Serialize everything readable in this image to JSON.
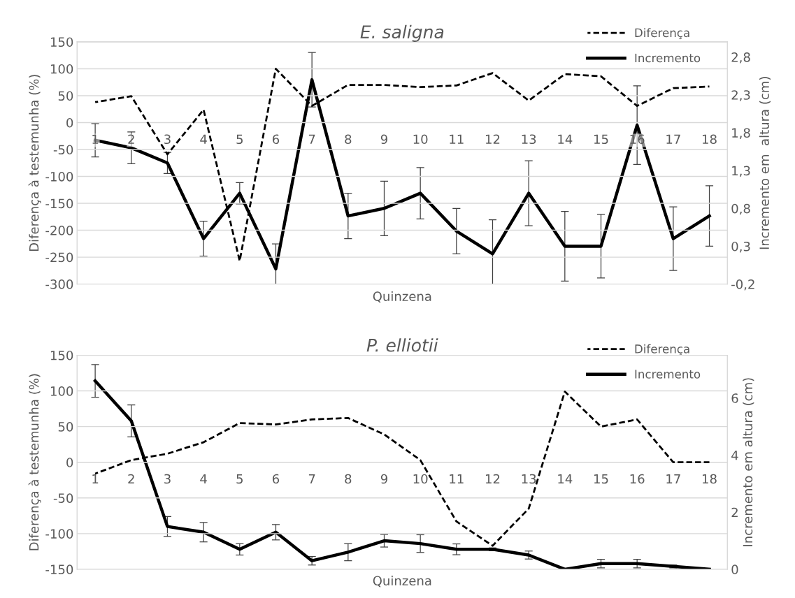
{
  "chart_data": [
    {
      "type": "line",
      "title": "E. saligna",
      "xlabel": "Quinzena",
      "ylabel": "Diferença à testemunha (%)",
      "y2label": "Incremento em  altura (cm)",
      "categories": [
        "1",
        "2",
        "3",
        "4",
        "5",
        "6",
        "7",
        "8",
        "9",
        "10",
        "11",
        "12",
        "13",
        "14",
        "15",
        "16",
        "17",
        "18"
      ],
      "ylim": [
        -300,
        150
      ],
      "yticks": [
        -300,
        -250,
        -200,
        -150,
        -100,
        -50,
        0,
        50,
        100,
        150
      ],
      "y2lim": [
        -0.2,
        3.0
      ],
      "y2ticks": [
        {
          "value": -0.2,
          "label": "-0,2"
        },
        {
          "value": 0.3,
          "label": "0,3"
        },
        {
          "value": 0.8,
          "label": "0,8"
        },
        {
          "value": 1.3,
          "label": "1,3"
        },
        {
          "value": 1.8,
          "label": "1,8"
        },
        {
          "value": 2.3,
          "label": "2,3"
        },
        {
          "value": 2.8,
          "label": "2,8"
        }
      ],
      "grid": "y",
      "legend": "top right",
      "marker": "none",
      "series": [
        {
          "name": "Diferença",
          "color": "#000000",
          "line_style": "dashed",
          "values": [
            38,
            49,
            -59,
            24,
            -257,
            100,
            31,
            70,
            70,
            66,
            69,
            92,
            41,
            90,
            86,
            31,
            64,
            67
          ]
        },
        {
          "name": "Incremento",
          "color": "#000000",
          "line_style": "solid",
          "axis": "y2",
          "values": [
            1.7,
            1.6,
            1.4,
            0.4,
            1.0,
            0.0,
            2.5,
            0.7,
            0.8,
            1.0,
            0.5,
            0.2,
            1.0,
            0.3,
            0.3,
            1.9,
            0.4,
            0.7
          ],
          "errors": [
            0.22,
            0.21,
            0.14,
            0.23,
            0.14,
            [
              -0.2,
              0.33
            ],
            0.36,
            0.3,
            0.36,
            0.34,
            0.3,
            [
              -0.2,
              0.65
            ],
            0.43,
            0.46,
            0.42,
            0.52,
            0.42,
            0.4
          ]
        }
      ]
    },
    {
      "type": "line",
      "title": "P. elliotii",
      "xlabel": "Quinzena",
      "ylabel": "Diferença à testemunha (%)",
      "y2label": "Incremento em altura (cm)",
      "categories": [
        "1",
        "2",
        "3",
        "4",
        "5",
        "6",
        "7",
        "8",
        "9",
        "10",
        "11",
        "12",
        "13",
        "14",
        "15",
        "16",
        "17",
        "18"
      ],
      "ylim": [
        -150,
        150
      ],
      "yticks": [
        -150,
        -100,
        -50,
        0,
        50,
        100,
        150
      ],
      "y2lim": [
        0,
        7.5
      ],
      "y2ticks": [
        0,
        2,
        4,
        6
      ],
      "grid": "y",
      "legend": "top right",
      "marker": "none",
      "series": [
        {
          "name": "Diferença",
          "color": "#000000",
          "line_style": "dashed",
          "values": [
            -16,
            3,
            12,
            28,
            55,
            53,
            60,
            62,
            39,
            3,
            -83,
            -117,
            -65,
            99,
            50,
            60,
            0,
            0
          ]
        },
        {
          "name": "Incremento",
          "color": "#000000",
          "line_style": "solid",
          "axis": "y2",
          "values": [
            6.6,
            5.2,
            1.5,
            1.3,
            0.7,
            1.3,
            0.3,
            0.6,
            1.0,
            0.9,
            0.7,
            0.7,
            0.5,
            0,
            0.2,
            0.2,
            0.1,
            0
          ],
          "errors": [
            0.57,
            0.56,
            0.35,
            0.34,
            0.2,
            0.27,
            0.15,
            0.3,
            0.22,
            0.31,
            0.19,
            0.05,
            0.14,
            null,
            0.15,
            0.15,
            0.05,
            null
          ]
        }
      ]
    }
  ]
}
